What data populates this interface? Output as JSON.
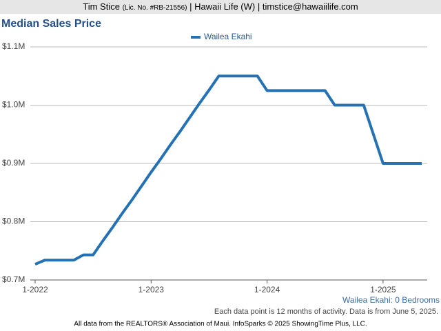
{
  "header": {
    "name": "Tim Stice",
    "license": "(Lic. No. #RB-21556)",
    "rest": "| Hawaii Life (W) | timstice@hawaiilife.com"
  },
  "chart_data": {
    "type": "line",
    "title": "Median Sales Price",
    "categories": [
      "1-2022",
      null,
      null,
      null,
      null,
      null,
      null,
      null,
      null,
      null,
      null,
      null,
      "1-2023",
      null,
      null,
      null,
      null,
      null,
      null,
      null,
      null,
      null,
      null,
      null,
      "1-2024",
      null,
      null,
      null,
      null,
      null,
      null,
      null,
      null,
      null,
      null,
      null,
      "1-2025",
      null,
      null,
      null,
      null
    ],
    "series": [
      {
        "name": "Wailea Ekahi",
        "color": "#2472b4",
        "values": [
          727000,
          734000,
          734000,
          734000,
          734000,
          743000,
          743000,
          767000,
          790000,
          814000,
          837000,
          861000,
          885000,
          908000,
          932000,
          955000,
          979000,
          1003000,
          1026000,
          1050000,
          1050000,
          1050000,
          1050000,
          1050000,
          1025000,
          1025000,
          1025000,
          1025000,
          1025000,
          1025000,
          1025000,
          1000000,
          1000000,
          1000000,
          1000000,
          950000,
          900000,
          900000,
          900000,
          900000,
          900000
        ]
      }
    ],
    "ylim": [
      700000,
      1100000
    ],
    "yticks": [
      {
        "value": 700000,
        "label": "$0.7M"
      },
      {
        "value": 800000,
        "label": "$0.8M"
      },
      {
        "value": 900000,
        "label": "$0.9M"
      },
      {
        "value": 1000000,
        "label": "$1.0M"
      },
      {
        "value": 1100000,
        "label": "$1.1M"
      }
    ],
    "grid": true,
    "legend": "top",
    "subtitle": "Wailea Ekahi: 0 Bedrooms",
    "note": "Each data point is 12 months of activity. Data is from June 5, 2025.",
    "footer": "All data from the REALTORS® Association of Maui. InfoSparks © 2025 ShowingTime Plus, LLC."
  }
}
